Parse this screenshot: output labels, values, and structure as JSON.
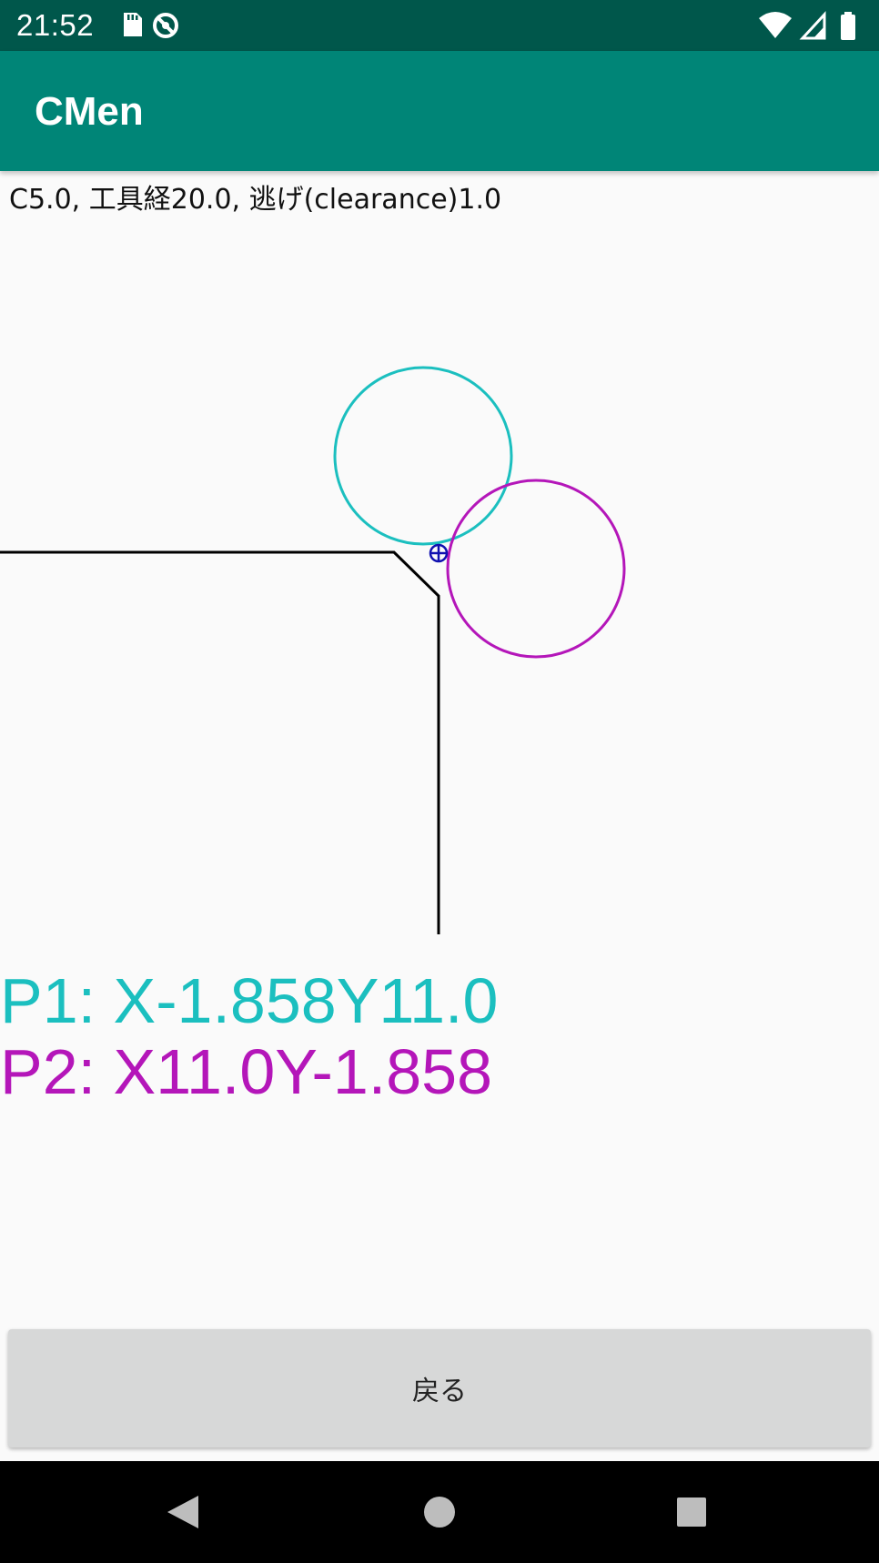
{
  "status_bar": {
    "time": "21:52",
    "left_icons": [
      "sd-card-icon",
      "sync-blocked-icon"
    ],
    "right_icons": [
      "wifi-icon",
      "cellular-signal-icon",
      "battery-icon"
    ]
  },
  "app_bar": {
    "title": "CMen"
  },
  "info_line": "C5.0, 工具経20.0, 逃げ(clearance)1.0",
  "drawing": {
    "workpiece_color": "#000000",
    "tool_p1_color": "#1bbfbf",
    "tool_p2_color": "#b416b9",
    "corner_marker_color": "#1010b0",
    "corner_marker_icon": "crosshair-circle-icon"
  },
  "results": {
    "p1": "P1: X-1.858Y11.0",
    "p2": "P2: X11.0Y-1.858"
  },
  "back_button": {
    "label": "戻る"
  },
  "nav_bar": {
    "icons": [
      "nav-back-icon",
      "nav-home-icon",
      "nav-recents-icon"
    ]
  }
}
